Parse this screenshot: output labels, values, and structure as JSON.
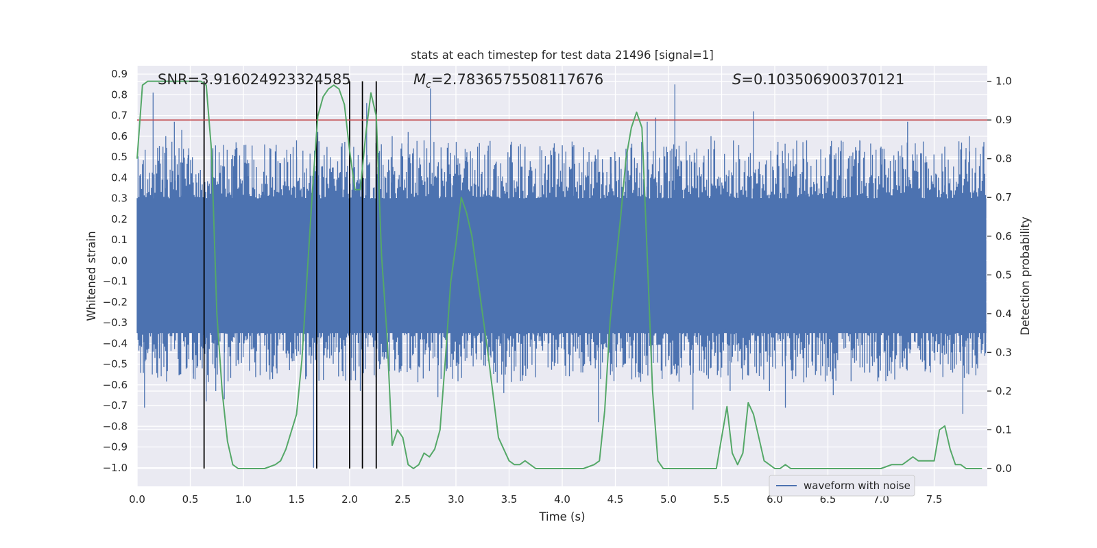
{
  "chart_data": {
    "type": "line",
    "title": "stats at each timestep for test data 21496 [signal=1]",
    "xlabel": "Time (s)",
    "ylabel": "Whitened strain",
    "y2label": "Detection probability",
    "xlim": [
      0.0,
      8.0
    ],
    "ylim": [
      -1.09,
      0.94
    ],
    "y2lim": [
      -0.046,
      1.04
    ],
    "xticks": [
      "0.0",
      "0.5",
      "1.0",
      "1.5",
      "2.0",
      "2.5",
      "3.0",
      "3.5",
      "4.0",
      "4.5",
      "5.0",
      "5.5",
      "6.0",
      "6.5",
      "7.0",
      "7.5"
    ],
    "yticks": [
      "−1.0",
      "−0.9",
      "−0.8",
      "−0.7",
      "−0.6",
      "−0.5",
      "−0.4",
      "−0.3",
      "−0.2",
      "−0.1",
      "0.0",
      "0.1",
      "0.2",
      "0.3",
      "0.4",
      "0.5",
      "0.6",
      "0.7",
      "0.8",
      "0.9"
    ],
    "y2ticks": [
      "0.0",
      "0.1",
      "0.2",
      "0.3",
      "0.4",
      "0.5",
      "0.6",
      "0.7",
      "0.8",
      "0.9",
      "1.0"
    ],
    "annotations": {
      "snr": "SNR=3.916024923324585",
      "mc_symbol": "M",
      "mc_sub": "c",
      "mc_value": "=2.7836575508117676",
      "s_symbol": "S",
      "s_value": "=0.103506900370121"
    },
    "threshold": {
      "value": 0.9,
      "axis": "right",
      "color": "#c44e52"
    },
    "vertical_lines": [
      0.63,
      1.69,
      2.0,
      2.12,
      2.25
    ],
    "waveform": {
      "name": "waveform with noise",
      "color": "#4c72b0",
      "band_max": 0.3,
      "band_min": -0.35,
      "peaks": [
        [
          0.07,
          -0.71
        ],
        [
          0.15,
          0.81
        ],
        [
          0.27,
          0.6
        ],
        [
          0.35,
          0.67
        ],
        [
          0.42,
          0.63
        ],
        [
          0.48,
          0.51
        ],
        [
          0.53,
          -0.57
        ],
        [
          0.63,
          0.56
        ],
        [
          0.65,
          -0.68
        ],
        [
          0.7,
          0.42
        ],
        [
          0.74,
          -0.63
        ],
        [
          0.82,
          -0.67
        ],
        [
          0.9,
          0.51
        ],
        [
          1.05,
          0.47
        ],
        [
          1.2,
          0.56
        ],
        [
          1.35,
          0.47
        ],
        [
          1.5,
          0.58
        ],
        [
          1.66,
          -1.0
        ],
        [
          1.7,
          0.62
        ],
        [
          1.76,
          0.51
        ],
        [
          1.92,
          0.55
        ],
        [
          2.02,
          -0.47
        ],
        [
          2.1,
          -0.63
        ],
        [
          2.16,
          0.76
        ],
        [
          2.25,
          0.59
        ],
        [
          2.4,
          0.6
        ],
        [
          2.55,
          0.62
        ],
        [
          2.7,
          0.58
        ],
        [
          2.76,
          0.83
        ],
        [
          2.83,
          -0.66
        ],
        [
          2.95,
          0.52
        ],
        [
          3.1,
          0.5
        ],
        [
          3.3,
          0.53
        ],
        [
          3.45,
          -0.64
        ],
        [
          3.65,
          0.55
        ],
        [
          3.9,
          0.51
        ],
        [
          4.1,
          0.55
        ],
        [
          4.34,
          -0.78
        ],
        [
          4.46,
          0.5
        ],
        [
          4.6,
          0.54
        ],
        [
          4.8,
          0.67
        ],
        [
          4.88,
          0.69
        ],
        [
          5.06,
          0.85
        ],
        [
          5.23,
          -0.72
        ],
        [
          5.4,
          0.6
        ],
        [
          5.58,
          -0.63
        ],
        [
          5.8,
          0.72
        ],
        [
          5.95,
          -0.63
        ],
        [
          6.1,
          -0.71
        ],
        [
          6.3,
          0.58
        ],
        [
          6.55,
          -0.65
        ],
        [
          6.8,
          0.58
        ],
        [
          7.0,
          0.55
        ],
        [
          7.25,
          0.67
        ],
        [
          7.6,
          0.55
        ],
        [
          7.77,
          -0.74
        ],
        [
          7.83,
          0.6
        ],
        [
          7.9,
          -0.5
        ]
      ]
    },
    "probability": {
      "color": "#55a868",
      "x": [
        0.0,
        0.05,
        0.1,
        0.2,
        0.3,
        0.4,
        0.5,
        0.55,
        0.6,
        0.65,
        0.7,
        0.75,
        0.8,
        0.85,
        0.9,
        0.95,
        1.0,
        1.1,
        1.2,
        1.3,
        1.35,
        1.4,
        1.5,
        1.55,
        1.6,
        1.65,
        1.7,
        1.75,
        1.8,
        1.85,
        1.9,
        1.95,
        2.0,
        2.05,
        2.1,
        2.15,
        2.2,
        2.25,
        2.3,
        2.35,
        2.4,
        2.45,
        2.5,
        2.55,
        2.6,
        2.65,
        2.7,
        2.75,
        2.8,
        2.85,
        2.9,
        2.95,
        3.0,
        3.05,
        3.1,
        3.15,
        3.2,
        3.3,
        3.4,
        3.5,
        3.55,
        3.6,
        3.65,
        3.7,
        3.75,
        3.8,
        4.0,
        4.2,
        4.3,
        4.35,
        4.4,
        4.45,
        4.5,
        4.55,
        4.6,
        4.65,
        4.7,
        4.75,
        4.8,
        4.85,
        4.9,
        4.95,
        5.0,
        5.1,
        5.2,
        5.3,
        5.4,
        5.45,
        5.5,
        5.55,
        5.6,
        5.65,
        5.7,
        5.75,
        5.8,
        5.85,
        5.9,
        5.95,
        6.0,
        6.05,
        6.1,
        6.15,
        6.2,
        6.3,
        6.4,
        6.5,
        6.6,
        6.8,
        7.0,
        7.1,
        7.15,
        7.2,
        7.25,
        7.3,
        7.35,
        7.4,
        7.45,
        7.5,
        7.55,
        7.6,
        7.65,
        7.7,
        7.75,
        7.8,
        7.85,
        7.9,
        7.95
      ],
      "y": [
        0.8,
        0.99,
        1.0,
        1.0,
        1.0,
        1.0,
        1.0,
        1.0,
        1.0,
        0.99,
        0.82,
        0.4,
        0.2,
        0.07,
        0.01,
        0.0,
        0.0,
        0.0,
        0.0,
        0.01,
        0.02,
        0.05,
        0.14,
        0.28,
        0.5,
        0.72,
        0.91,
        0.96,
        0.98,
        0.99,
        0.98,
        0.94,
        0.82,
        0.72,
        0.72,
        0.86,
        0.97,
        0.91,
        0.55,
        0.35,
        0.06,
        0.1,
        0.08,
        0.01,
        0.0,
        0.01,
        0.04,
        0.03,
        0.05,
        0.1,
        0.28,
        0.48,
        0.58,
        0.7,
        0.66,
        0.6,
        0.5,
        0.3,
        0.08,
        0.02,
        0.01,
        0.01,
        0.02,
        0.01,
        0.0,
        0.0,
        0.0,
        0.0,
        0.01,
        0.02,
        0.15,
        0.38,
        0.52,
        0.65,
        0.8,
        0.88,
        0.92,
        0.88,
        0.55,
        0.2,
        0.02,
        0.0,
        0.0,
        0.0,
        0.0,
        0.0,
        0.0,
        0.0,
        0.08,
        0.16,
        0.04,
        0.01,
        0.04,
        0.17,
        0.14,
        0.08,
        0.02,
        0.01,
        0.0,
        0.0,
        0.01,
        0.0,
        0.0,
        0.0,
        0.0,
        0.0,
        0.0,
        0.0,
        0.0,
        0.01,
        0.01,
        0.01,
        0.02,
        0.03,
        0.02,
        0.02,
        0.02,
        0.02,
        0.1,
        0.11,
        0.05,
        0.01,
        0.01,
        0.0,
        0.0,
        0.0,
        0.0
      ]
    },
    "legend": {
      "label": "waveform with noise",
      "placement": "lower-right"
    },
    "grid": true
  }
}
